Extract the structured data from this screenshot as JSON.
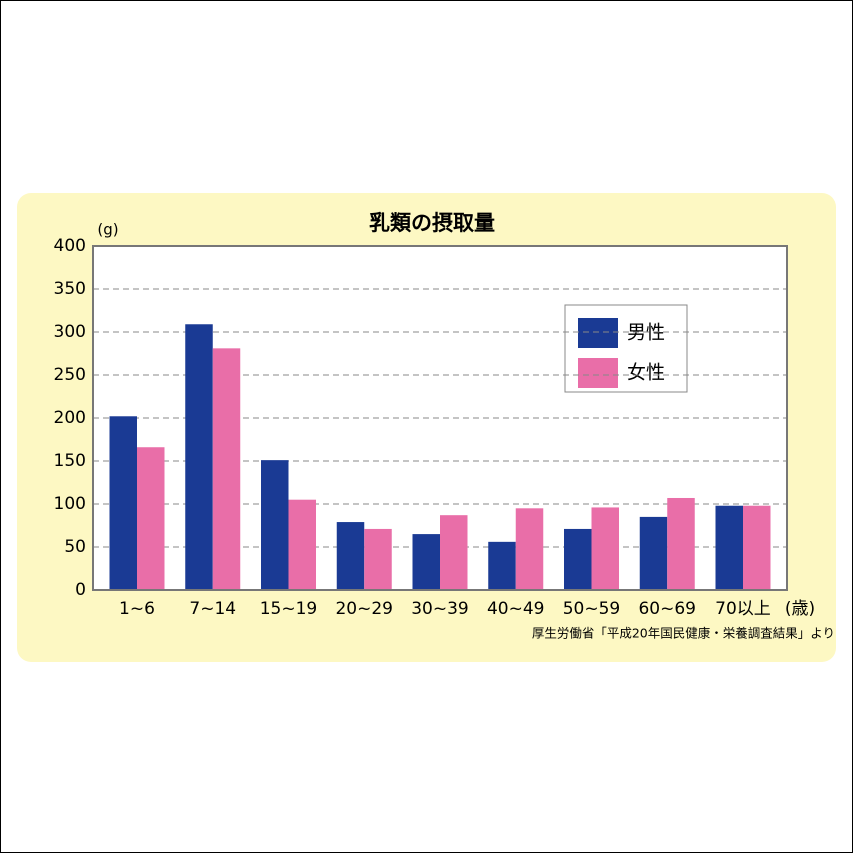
{
  "chart_data": {
    "type": "bar",
    "title": "乳類の摂取量",
    "y_unit": "(g)",
    "x_unit": "(歳)",
    "source": "厚生労働省「平成20年国民健康・栄養調査結果」より",
    "categories": [
      "1~6",
      "7~14",
      "15~19",
      "20~29",
      "30~39",
      "40~49",
      "50~59",
      "60~69",
      "70以上"
    ],
    "series": [
      {
        "name": "男性",
        "color": "#1a3a94",
        "values": [
          202,
          309,
          151,
          79,
          65,
          56,
          71,
          85,
          98
        ]
      },
      {
        "name": "女性",
        "color": "#e96ea8",
        "values": [
          166,
          281,
          105,
          71,
          87,
          95,
          96,
          107,
          98
        ]
      }
    ],
    "ylim": [
      0,
      400
    ],
    "yticks": [
      0,
      50,
      100,
      150,
      200,
      250,
      300,
      350,
      400
    ],
    "grid": true
  }
}
